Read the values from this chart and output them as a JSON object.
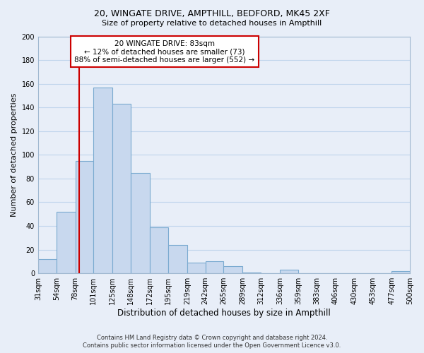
{
  "title": "20, WINGATE DRIVE, AMPTHILL, BEDFORD, MK45 2XF",
  "subtitle": "Size of property relative to detached houses in Ampthill",
  "xlabel": "Distribution of detached houses by size in Ampthill",
  "ylabel": "Number of detached properties",
  "bin_labels": [
    "31sqm",
    "54sqm",
    "78sqm",
    "101sqm",
    "125sqm",
    "148sqm",
    "172sqm",
    "195sqm",
    "219sqm",
    "242sqm",
    "265sqm",
    "289sqm",
    "312sqm",
    "336sqm",
    "359sqm",
    "383sqm",
    "406sqm",
    "430sqm",
    "453sqm",
    "477sqm",
    "500sqm"
  ],
  "bin_edges": [
    31,
    54,
    78,
    101,
    125,
    148,
    172,
    195,
    219,
    242,
    265,
    289,
    312,
    336,
    359,
    383,
    406,
    430,
    453,
    477,
    500
  ],
  "bar_heights": [
    12,
    52,
    95,
    157,
    143,
    85,
    39,
    24,
    9,
    10,
    6,
    1,
    0,
    3,
    0,
    0,
    0,
    0,
    0,
    2
  ],
  "bar_color": "#c8d8ee",
  "bar_edge_color": "#7aaad0",
  "property_line_x": 83,
  "property_label": "20 WINGATE DRIVE: 83sqm",
  "annotation_line1": "← 12% of detached houses are smaller (73)",
  "annotation_line2": "88% of semi-detached houses are larger (552) →",
  "annotation_box_color": "#ffffff",
  "annotation_box_edge": "#cc0000",
  "property_line_color": "#cc0000",
  "ylim": [
    0,
    200
  ],
  "yticks": [
    0,
    20,
    40,
    60,
    80,
    100,
    120,
    140,
    160,
    180,
    200
  ],
  "grid_color": "#c0d4ec",
  "background_color": "#e8eef8",
  "footer_line1": "Contains HM Land Registry data © Crown copyright and database right 2024.",
  "footer_line2": "Contains public sector information licensed under the Open Government Licence v3.0."
}
